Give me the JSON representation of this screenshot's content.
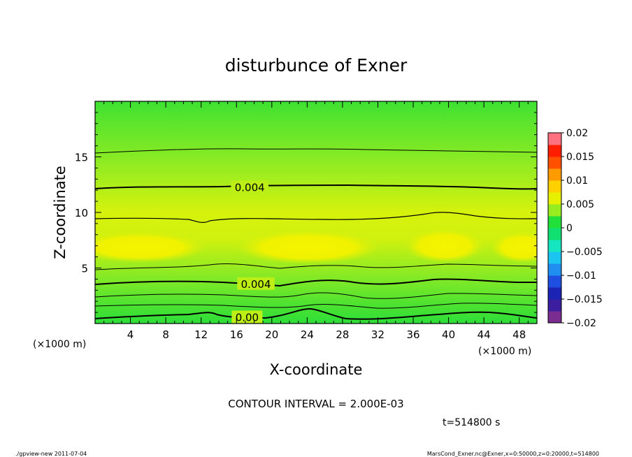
{
  "chart_data": {
    "type": "contour",
    "title": "disturbunce of Exner",
    "xlabel": "X-coordinate",
    "ylabel": "Z-coordinate",
    "x_unit_left": "(×1000 m)",
    "x_unit_right": "(×1000 m)",
    "xlim": [
      0,
      50
    ],
    "ylim": [
      0,
      20
    ],
    "x_ticks": [
      4,
      8,
      12,
      16,
      20,
      24,
      28,
      32,
      36,
      40,
      44,
      48
    ],
    "x_tick_labels": [
      "4",
      "8",
      "12",
      "16",
      "20",
      "24",
      "28",
      "32",
      "36",
      "40",
      "44",
      "48"
    ],
    "y_ticks": [
      5,
      10,
      15
    ],
    "y_tick_labels": [
      "5",
      "10",
      "15"
    ],
    "contour_interval_text": "CONTOUR INTERVAL = 2.000E-03",
    "time_text": "t=514800 s",
    "contour_labels": [
      {
        "text": "0.004",
        "x": 17.5,
        "y": 12.3
      },
      {
        "text": "0.004",
        "x": 18.2,
        "y": 3.6
      },
      {
        "text": "0.00",
        "x": 17.2,
        "y": 0.6
      }
    ],
    "colorbar": {
      "levels": [
        -0.02,
        -0.0175,
        -0.015,
        -0.0125,
        -0.01,
        -0.0075,
        -0.005,
        -0.0025,
        0,
        0.0025,
        0.005,
        0.0075,
        0.01,
        0.0125,
        0.015,
        0.0175,
        0.02
      ],
      "colors": [
        "#7a2d8f",
        "#3c1ea0",
        "#1a23b4",
        "#1e4fe0",
        "#1f8ef0",
        "#1cc4f0",
        "#16e6c0",
        "#10e070",
        "#22e03a",
        "#96ec1e",
        "#e6f000",
        "#ffd000",
        "#ff9a00",
        "#ff5000",
        "#ff1e00",
        "#ff7080"
      ],
      "tick_labels": [
        "0.02",
        "0.015",
        "0.01",
        "0.005",
        "0",
        "−0.005",
        "−0.01",
        "−0.015",
        "−0.02"
      ]
    }
  },
  "footer": {
    "left": "./gpview-new   2011-07-04",
    "right": "MarsCond_Exner.nc@Exner,x=0:50000,z=0:20000,t=514800"
  }
}
